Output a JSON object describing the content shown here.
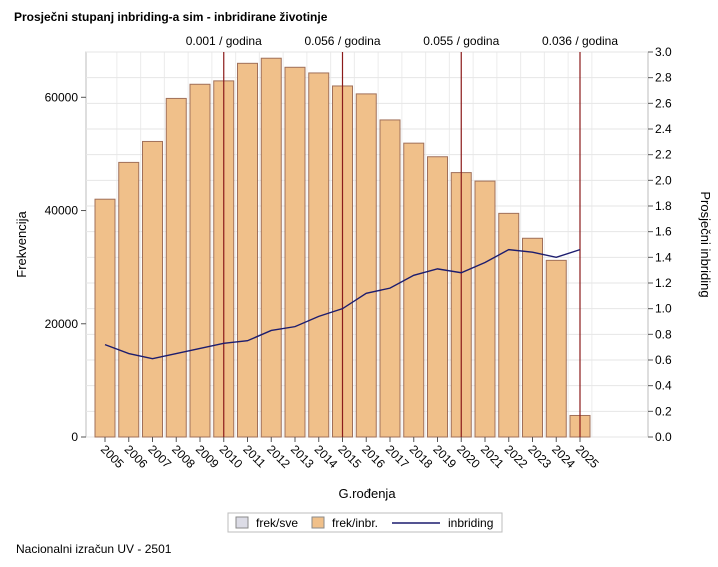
{
  "title": "Prosječni stupanj inbriding-a sim - inbridirane životinje",
  "footer": "Nacionalni izračun UV - 2501",
  "chart_data": {
    "type": "bar",
    "title": "Prosječni stupanj inbriding-a sim - inbridirane životinje",
    "xlabel": "G.rođenja",
    "ylabel": "Frekvencija",
    "y2label": "Prosječni inbriding",
    "categories": [
      "2005",
      "2006",
      "2007",
      "2008",
      "2009",
      "2010",
      "2011",
      "2012",
      "2013",
      "2014",
      "2015",
      "2016",
      "2017",
      "2018",
      "2019",
      "2020",
      "2021",
      "2022",
      "2023",
      "2024",
      "2025"
    ],
    "series": [
      {
        "name": "frek/sve",
        "type": "bar",
        "color": "#dcdce6",
        "values": [
          null,
          null,
          null,
          null,
          null,
          null,
          null,
          null,
          null,
          null,
          null,
          null,
          null,
          null,
          null,
          null,
          null,
          null,
          null,
          null,
          null
        ]
      },
      {
        "name": "frek/inbr.",
        "type": "bar",
        "color": "#f0c08a",
        "stroke": "#a0705a",
        "axis": "left",
        "values": [
          42000,
          48500,
          52200,
          59800,
          62300,
          62900,
          66000,
          66900,
          65300,
          64300,
          62000,
          60600,
          56000,
          51900,
          49500,
          46700,
          45200,
          39500,
          35100,
          31200,
          3800
        ]
      },
      {
        "name": "inbriding",
        "type": "line",
        "color": "#1c1c6e",
        "axis": "right",
        "values": [
          0.72,
          0.65,
          0.61,
          0.65,
          0.69,
          0.73,
          0.75,
          0.83,
          0.86,
          0.94,
          1.0,
          1.12,
          1.16,
          1.26,
          1.31,
          1.28,
          1.36,
          1.46,
          1.44,
          1.4,
          1.46
        ]
      }
    ],
    "ylim": [
      0,
      68000
    ],
    "yticks": [
      0,
      20000,
      40000,
      60000
    ],
    "y2lim": [
      0,
      3.0
    ],
    "y2ticks": [
      "0.0",
      "0.2",
      "0.4",
      "0.6",
      "0.8",
      "1.0",
      "1.2",
      "1.4",
      "1.6",
      "1.8",
      "2.0",
      "2.2",
      "2.4",
      "2.6",
      "2.8",
      "3.0"
    ],
    "reference_lines": [
      {
        "category": "2010",
        "label": "0.001 / godina"
      },
      {
        "category": "2015",
        "label": "0.056 / godina"
      },
      {
        "category": "2020",
        "label": "0.055 / godina"
      },
      {
        "category": "2025",
        "label": "0.036 / godina"
      }
    ],
    "reference_color": "#8b1a1a",
    "grid": true,
    "legend": "bottom"
  }
}
